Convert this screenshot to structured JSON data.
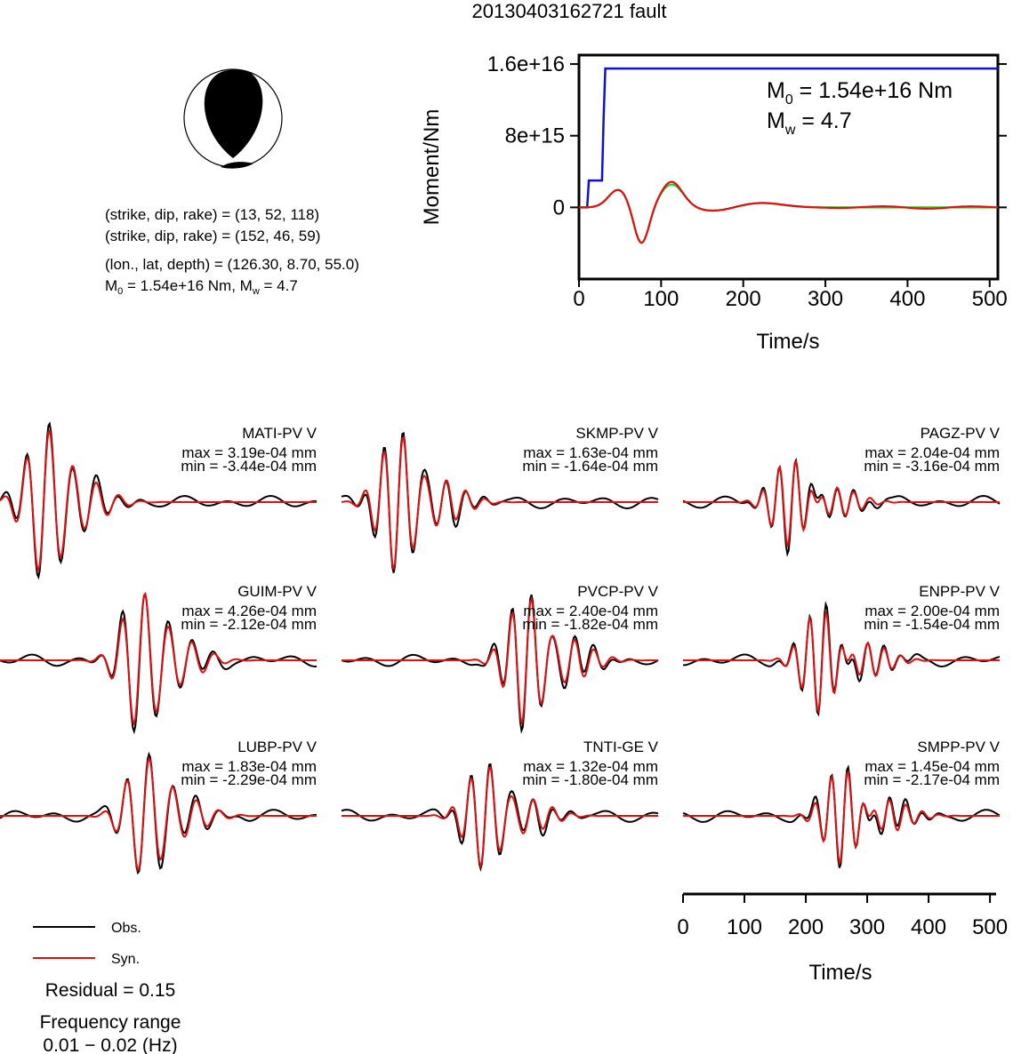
{
  "title": "20130403162721 fault",
  "mechanism": {
    "planes": [
      "(strike, dip, rake) = (13, 52, 118)",
      "(strike, dip, rake) = (152, 46, 59)"
    ],
    "location": "(lon., lat, depth) = (126.30, 8.70, 55.0)",
    "m0_prefix": "M",
    "m0_sub": "0",
    "m0_value": " = 1.54e+16 Nm, M",
    "mw_sub": "w",
    "mw_value": " = 4.7"
  },
  "moment_annotation": {
    "m0_label": "M",
    "m0_sub": "0",
    "m0_text": " = 1.54e+16 Nm",
    "mw_label": "M",
    "mw_sub": "w",
    "mw_text": " = 4.7"
  },
  "legend": {
    "obs": "Obs.",
    "syn": "Syn."
  },
  "residual": "Residual = 0.15",
  "freq_title": "Frequency range",
  "freq_value": "0.01 − 0.02 (Hz)",
  "colors": {
    "obs": "#000000",
    "syn": "#e01010",
    "moment": "#1010d0",
    "green": "#22cc22"
  },
  "chart_data": [
    {
      "type": "line",
      "ylabel": "Moment/Nm",
      "xlabel": "Time/s",
      "xlim": [
        0,
        510
      ],
      "ylim": [
        -8000000000000000.0,
        1.7e+16
      ],
      "yticks": [
        {
          "value": 1.6e+16,
          "label": "1.6e+16"
        },
        {
          "value": 8000000000000000.0,
          "label": "8e+15"
        },
        {
          "value": 0,
          "label": "0"
        }
      ],
      "xticks": [
        0,
        100,
        200,
        300,
        400,
        500
      ],
      "series": [
        {
          "color": "#1010d0",
          "x": [
            0,
            10,
            12,
            28,
            30,
            32,
            510
          ],
          "y": [
            0,
            0,
            3000000000000000.0,
            3000000000000000.0,
            1e+16,
            1.55e+16,
            1.55e+16
          ]
        }
      ]
    },
    {
      "type": "line",
      "xlabel": "Time/s",
      "xlim": [
        0,
        510
      ],
      "xticks": [
        0,
        100,
        200,
        300,
        400,
        500
      ],
      "stations": [
        {
          "name": "MATI-PV V",
          "max": "max = 3.19e-04 mm",
          "min": "min = -3.44e-04 mm"
        },
        {
          "name": "SKMP-PV V",
          "max": "max = 1.63e-04 mm",
          "min": "min = -1.64e-04 mm"
        },
        {
          "name": "PAGZ-PV V",
          "max": "max = 2.04e-04 mm",
          "min": "min = -3.16e-04 mm"
        },
        {
          "name": "GUIM-PV V",
          "max": "max = 4.26e-04 mm",
          "min": "min = -2.12e-04 mm"
        },
        {
          "name": "PVCP-PV V",
          "max": "max = 2.40e-04 mm",
          "min": "min = -1.82e-04 mm"
        },
        {
          "name": "ENPP-PV V",
          "max": "max = 2.00e-04 mm",
          "min": "min = -1.54e-04 mm"
        },
        {
          "name": "LUBP-PV V",
          "max": "max = 1.83e-04 mm",
          "min": "min = -2.29e-04 mm"
        },
        {
          "name": "TNTI-GE V",
          "max": "max = 1.32e-04 mm",
          "min": "min = -1.80e-04 mm"
        },
        {
          "name": "SMPP-PV V",
          "max": "max = 1.45e-04 mm",
          "min": "min = -2.17e-04 mm"
        }
      ]
    }
  ]
}
